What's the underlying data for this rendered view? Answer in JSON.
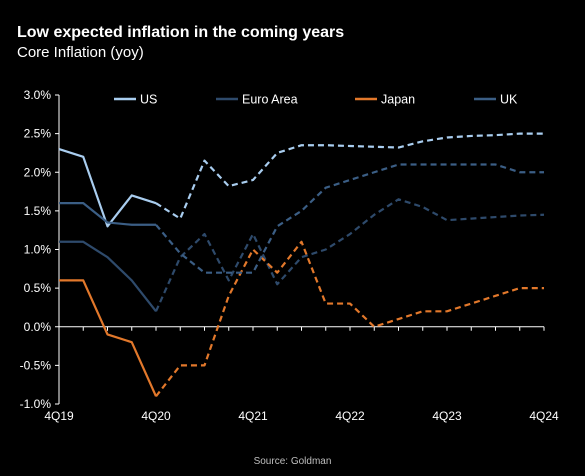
{
  "chart_data": {
    "type": "line",
    "title": "Low expected inflation in the coming years",
    "subtitle": "Core Inflation (yoy)",
    "source": "Source: Goldman",
    "ylim": [
      -1.0,
      3.0
    ],
    "y_ticks": [
      "3.0%",
      "2.5%",
      "2.0%",
      "1.5%",
      "1.0%",
      "0.5%",
      "0.0%",
      "-0.5%",
      "-1.0%"
    ],
    "y_tick_values": [
      3.0,
      2.5,
      2.0,
      1.5,
      1.0,
      0.5,
      0.0,
      -0.5,
      -1.0
    ],
    "x_tick_labels": [
      "4Q19",
      "4Q20",
      "4Q21",
      "4Q22",
      "4Q23",
      "4Q24"
    ],
    "x_tick_index": [
      0,
      4,
      8,
      12,
      16,
      20
    ],
    "x_count": 21,
    "forecast_start_index": 4,
    "legend_position": "top",
    "series": [
      {
        "name": "US",
        "color": "#a9cdef",
        "values": [
          2.3,
          2.2,
          1.3,
          1.7,
          1.6,
          1.4,
          2.15,
          1.82,
          1.9,
          2.25,
          2.35,
          2.35,
          2.34,
          2.33,
          2.32,
          2.4,
          2.45,
          2.47,
          2.48,
          2.5,
          2.5
        ]
      },
      {
        "name": "Euro Area",
        "color": "#2e4a6b",
        "values": [
          1.1,
          1.1,
          0.9,
          0.6,
          0.2,
          0.9,
          1.2,
          0.6,
          1.2,
          0.55,
          0.9,
          1.0,
          1.2,
          1.45,
          1.65,
          1.55,
          1.38,
          1.4,
          1.42,
          1.44,
          1.45
        ]
      },
      {
        "name": "Japan",
        "color": "#e2782b",
        "values": [
          0.6,
          0.6,
          -0.1,
          -0.2,
          -0.9,
          -0.5,
          -0.5,
          0.4,
          1.0,
          0.7,
          1.1,
          0.3,
          0.3,
          0.0,
          0.1,
          0.2,
          0.2,
          0.3,
          0.4,
          0.5,
          0.5
        ]
      },
      {
        "name": "UK",
        "color": "#3b5e85",
        "values": [
          1.6,
          1.6,
          1.35,
          1.32,
          1.32,
          0.95,
          0.7,
          0.7,
          0.7,
          1.3,
          1.5,
          1.8,
          1.9,
          2.0,
          2.1,
          2.1,
          2.1,
          2.1,
          2.1,
          2.0,
          2.0
        ]
      }
    ]
  }
}
